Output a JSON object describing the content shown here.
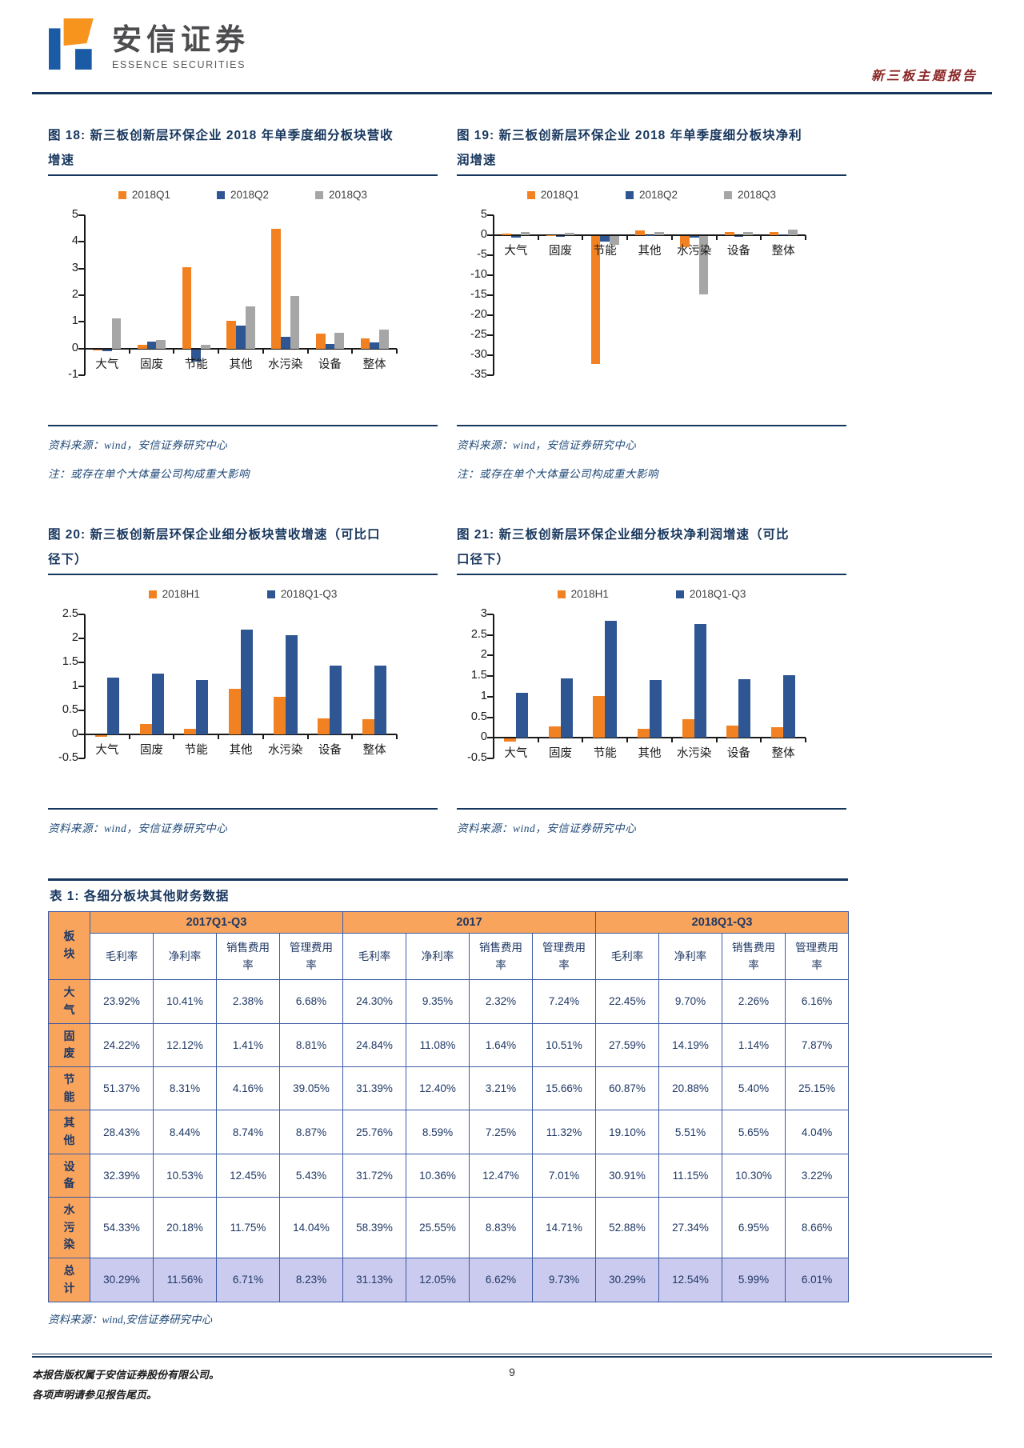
{
  "header": {
    "brand_cn": "安信证券",
    "brand_en": "ESSENCE SECURITIES",
    "report_type": "新三板主题报告"
  },
  "colors": {
    "accent_navy": "#17365D",
    "series_orange": "#F28221",
    "series_blue": "#2E5693",
    "series_gray": "#A6A6A6",
    "table_header_orange": "#F9A45C",
    "total_row_lavender": "#CBCBEF",
    "report_type_red": "#8B2626"
  },
  "chart_data": [
    {
      "type": "bar",
      "title": "图 18: 新三板创新层环保企业 2018 年单季度细分板块营收增速",
      "title_lines": [
        "图 18: 新三板创新层环保企业 2018 年单季度细分板块营收",
        "增速"
      ],
      "categories": [
        "大气",
        "固废",
        "节能",
        "其他",
        "水污染",
        "设备",
        "整体"
      ],
      "series": [
        {
          "name": "2018Q1",
          "color": "#F28221",
          "values": [
            -0.04,
            0.15,
            3.05,
            1.05,
            4.5,
            0.55,
            0.38
          ]
        },
        {
          "name": "2018Q2",
          "color": "#2E5693",
          "values": [
            -0.08,
            0.25,
            -0.45,
            0.85,
            0.43,
            0.18,
            0.22
          ]
        },
        {
          "name": "2018Q3",
          "color": "#A6A6A6",
          "values": [
            1.12,
            0.33,
            0.13,
            1.58,
            1.97,
            0.58,
            0.7
          ]
        }
      ],
      "ylim": [
        -1,
        5
      ],
      "ystep": 1,
      "grid": false,
      "legend_position": "top",
      "source": "资料来源：wind，安信证券研究中心",
      "note": "注：或存在单个大体量公司构成重大影响"
    },
    {
      "type": "bar",
      "title": "图 19: 新三板创新层环保企业 2018 年单季度细分板块净利润增速",
      "title_lines": [
        "图 19: 新三板创新层环保企业 2018 年单季度细分板块净利",
        "润增速"
      ],
      "categories": [
        "大气",
        "固废",
        "节能",
        "其他",
        "水污染",
        "设备",
        "整体"
      ],
      "series": [
        {
          "name": "2018Q1",
          "color": "#F28221",
          "values": [
            0.5,
            0.1,
            -32,
            1.3,
            -2.8,
            0.9,
            0.9
          ]
        },
        {
          "name": "2018Q2",
          "color": "#2E5693",
          "values": [
            -0.4,
            -0.15,
            -1.3,
            0.1,
            -0.4,
            -0.2,
            0.15
          ]
        },
        {
          "name": "2018Q3",
          "color": "#A6A6A6",
          "values": [
            0.9,
            0.6,
            -2.2,
            0.9,
            -14.5,
            0.8,
            1.5
          ]
        }
      ],
      "ylim": [
        -35,
        5
      ],
      "ystep": 5,
      "grid": false,
      "legend_position": "top",
      "source": "资料来源：wind，安信证券研究中心",
      "note": "注：或存在单个大体量公司构成重大影响"
    },
    {
      "type": "bar",
      "title": "图 20: 新三板创新层环保企业细分板块营收增速（可比口径下）",
      "title_lines": [
        "图 20: 新三板创新层环保企业细分板块营收增速（可比口",
        "径下）"
      ],
      "categories": [
        "大气",
        "固废",
        "节能",
        "其他",
        "水污染",
        "设备",
        "整体"
      ],
      "series": [
        {
          "name": "2018H1",
          "color": "#F28221",
          "values": [
            -0.03,
            0.21,
            0.12,
            0.95,
            0.78,
            0.34,
            0.31
          ]
        },
        {
          "name": "2018Q1-Q3",
          "color": "#2E5693",
          "values": [
            1.18,
            1.26,
            1.14,
            2.18,
            2.06,
            1.44,
            1.44
          ]
        }
      ],
      "ylim": [
        -0.5,
        2.5
      ],
      "ystep": 0.5,
      "grid": false,
      "legend_position": "top",
      "source": "资料来源：wind，安信证券研究中心",
      "note": ""
    },
    {
      "type": "bar",
      "title": "图 21: 新三板创新层环保企业细分板块净利润增速（可比口径下）",
      "title_lines": [
        "图 21: 新三板创新层环保企业细分板块净利润增速（可比",
        "口径下）"
      ],
      "categories": [
        "大气",
        "固废",
        "节能",
        "其他",
        "水污染",
        "设备",
        "整体"
      ],
      "series": [
        {
          "name": "2018H1",
          "color": "#F28221",
          "values": [
            -0.08,
            0.28,
            1.02,
            0.22,
            0.45,
            0.3,
            0.25
          ]
        },
        {
          "name": "2018Q1-Q3",
          "color": "#2E5693",
          "values": [
            1.1,
            1.45,
            2.85,
            1.4,
            2.77,
            1.42,
            1.52
          ]
        }
      ],
      "ylim": [
        -0.5,
        3
      ],
      "ystep": 0.5,
      "grid": false,
      "legend_position": "top",
      "source": "资料来源：wind，安信证券研究中心",
      "note": ""
    }
  ],
  "table": {
    "title": "表 1:  各细分板块其他财务数据",
    "corner_header": "板块",
    "groups": [
      "2017Q1-Q3",
      "2017",
      "2018Q1-Q3"
    ],
    "sub_headers": [
      "毛利率",
      "净利率",
      "销售费用率",
      "管理费用率"
    ],
    "rows": [
      {
        "label": "大气",
        "highlight": false,
        "values": [
          "23.92%",
          "10.41%",
          "2.38%",
          "6.68%",
          "24.30%",
          "9.35%",
          "2.32%",
          "7.24%",
          "22.45%",
          "9.70%",
          "2.26%",
          "6.16%"
        ]
      },
      {
        "label": "固废",
        "highlight": false,
        "values": [
          "24.22%",
          "12.12%",
          "1.41%",
          "8.81%",
          "24.84%",
          "11.08%",
          "1.64%",
          "10.51%",
          "27.59%",
          "14.19%",
          "1.14%",
          "7.87%"
        ]
      },
      {
        "label": "节能",
        "highlight": false,
        "values": [
          "51.37%",
          "8.31%",
          "4.16%",
          "39.05%",
          "31.39%",
          "12.40%",
          "3.21%",
          "15.66%",
          "60.87%",
          "20.88%",
          "5.40%",
          "25.15%"
        ]
      },
      {
        "label": "其他",
        "highlight": false,
        "values": [
          "28.43%",
          "8.44%",
          "8.74%",
          "8.87%",
          "25.76%",
          "8.59%",
          "7.25%",
          "11.32%",
          "19.10%",
          "5.51%",
          "5.65%",
          "4.04%"
        ]
      },
      {
        "label": "设备",
        "highlight": false,
        "values": [
          "32.39%",
          "10.53%",
          "12.45%",
          "5.43%",
          "31.72%",
          "10.36%",
          "12.47%",
          "7.01%",
          "30.91%",
          "11.15%",
          "10.30%",
          "3.22%"
        ]
      },
      {
        "label": "水污染",
        "highlight": false,
        "values": [
          "54.33%",
          "20.18%",
          "11.75%",
          "14.04%",
          "58.39%",
          "25.55%",
          "8.83%",
          "14.71%",
          "52.88%",
          "27.34%",
          "6.95%",
          "8.66%"
        ]
      },
      {
        "label": "总计",
        "highlight": true,
        "values": [
          "30.29%",
          "11.56%",
          "6.71%",
          "8.23%",
          "31.13%",
          "12.05%",
          "6.62%",
          "9.73%",
          "30.29%",
          "12.54%",
          "5.99%",
          "6.01%"
        ]
      }
    ],
    "source": "资料来源：wind,安信证券研究中心"
  },
  "footer": {
    "copyright_line1": "本报告版权属于安信证券股份有限公司。",
    "copyright_line2": "各项声明请参见报告尾页。",
    "page_number": "9"
  }
}
